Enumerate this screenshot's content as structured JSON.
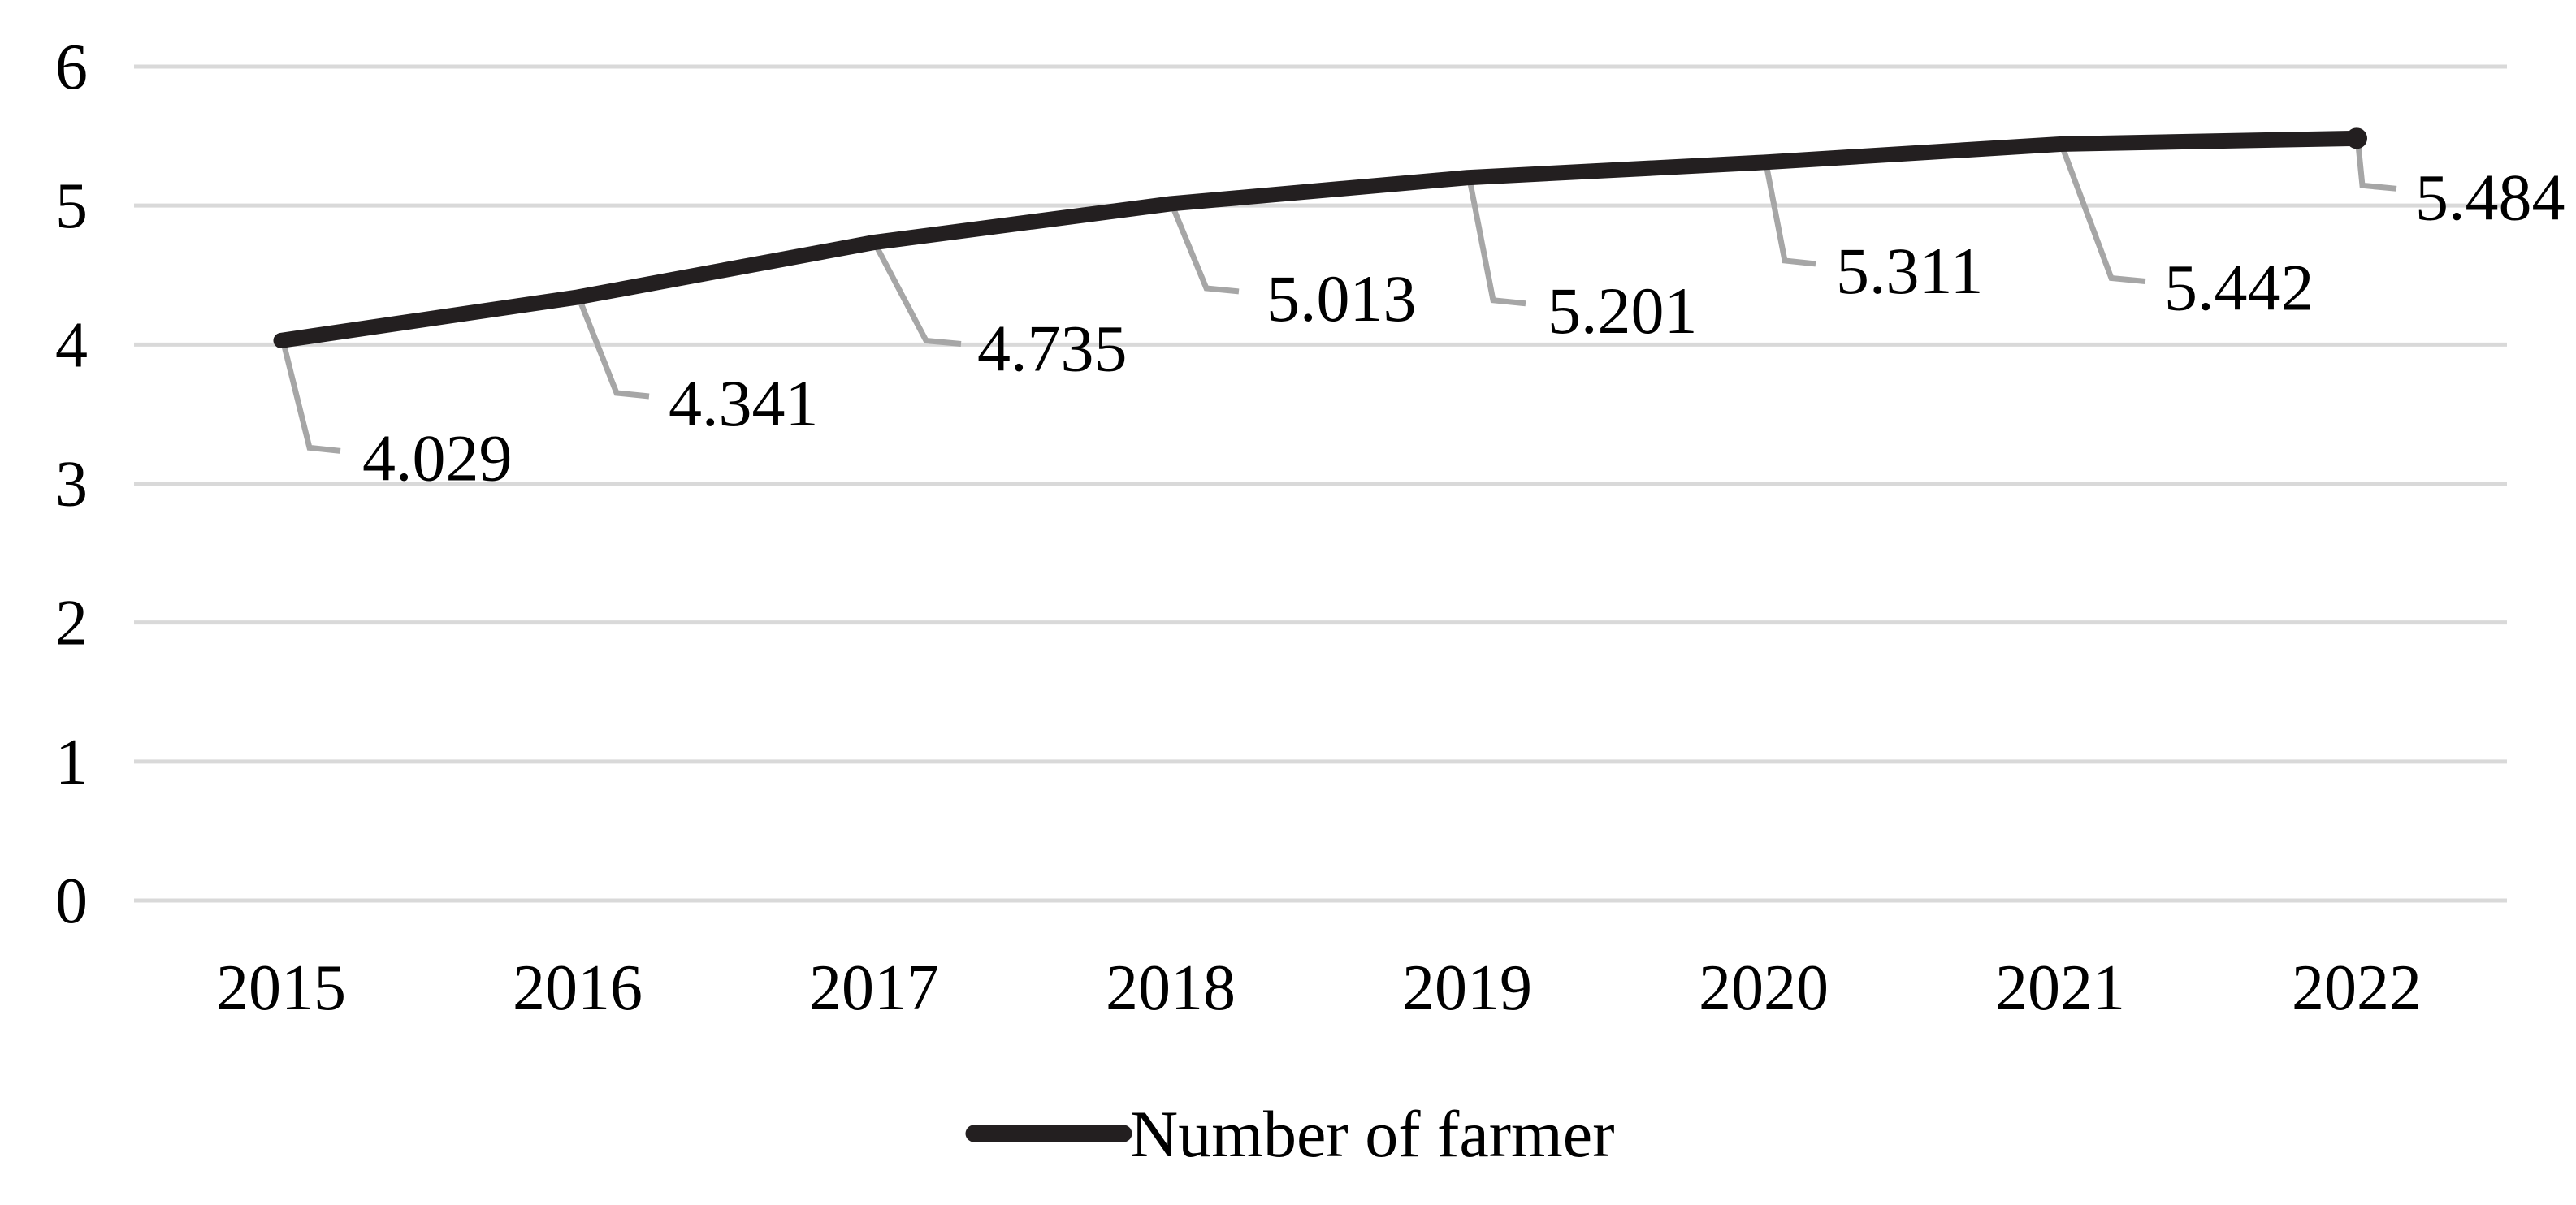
{
  "chart_data": {
    "type": "line",
    "title": "",
    "categories": [
      "2015",
      "2016",
      "2017",
      "2018",
      "2019",
      "2020",
      "2021",
      "2022"
    ],
    "series": [
      {
        "name": "Number of farmer",
        "values": [
          4.029,
          4.341,
          4.735,
          5.013,
          5.201,
          5.311,
          5.442,
          5.484
        ],
        "data_labels": [
          "4.029",
          "4.341",
          "4.735",
          "5.013",
          "5.201",
          "5.311",
          "5.442",
          "5.484"
        ]
      }
    ],
    "xlabel": "",
    "ylabel": "",
    "ylim": [
      0,
      6
    ],
    "ytick_labels": [
      "0",
      "1",
      "2",
      "3",
      "4",
      "5",
      "6"
    ],
    "grid": true,
    "legend_position": "bottom",
    "legend_label": "Number of farmer",
    "colors": {
      "series_line": "#231f20",
      "gridline": "#d9d9d9",
      "leader_line": "#a6a6a6",
      "text": "#000000",
      "background": "#ffffff"
    }
  }
}
